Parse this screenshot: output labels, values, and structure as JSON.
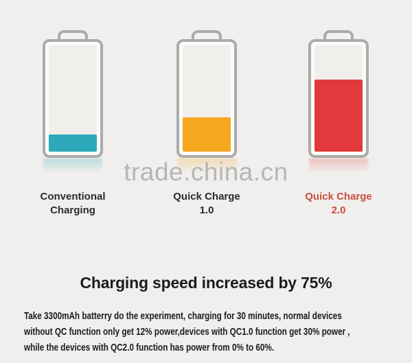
{
  "page": {
    "background_color": "#f0efed"
  },
  "watermark": {
    "text": "trade.china.cn",
    "color": "#b6b6b6"
  },
  "batteries": [
    {
      "name": "Conventional Charging",
      "label_line1": "Conventional",
      "label_line2": "Charging",
      "label_color": "#2a2a2a",
      "fill_color": "#2ba9b9",
      "reflection_color": "rgba(43,169,185,0.30)",
      "visual_fill_percent": 16,
      "power_percent_after_30_min": 12
    },
    {
      "name": "Quick Charge 1.0",
      "label_line1": "Quick Charge",
      "label_line2": "1.0",
      "label_color": "#2a2a2a",
      "fill_color": "#f6a81f",
      "reflection_color": "rgba(246,168,31,0.30)",
      "visual_fill_percent": 32,
      "power_percent_after_30_min": 30
    },
    {
      "name": "Quick Charge 2.0",
      "label_line1": "Quick Charge",
      "label_line2": "2.0",
      "label_color": "#c94f3f",
      "fill_color": "#e23a3c",
      "reflection_color": "rgba(226,58,60,0.28)",
      "visual_fill_percent": 68,
      "power_percent_after_30_min": 60
    }
  ],
  "headline": "Charging speed increased by 75%",
  "paragraph": {
    "line1": "Take 3300mAh batterry do the experiment, charging for 30 minutes, normal devices",
    "line2": "without QC function only get 12% power,devices with QC1.0 function get 30% power ,",
    "line3": "while the devices with QC2.0 function has power from 0% to 60%."
  },
  "chart_data": {
    "type": "bar",
    "categories": [
      "Conventional Charging",
      "Quick Charge 1.0",
      "Quick Charge 2.0"
    ],
    "values": [
      12,
      30,
      60
    ],
    "value_unit": "% battery power after 30 minutes of charging",
    "title": "Charging speed increased by 75%",
    "ylim": [
      0,
      100
    ],
    "bar_colors": [
      "#2ba9b9",
      "#f6a81f",
      "#e23a3c"
    ],
    "legend": "none",
    "grid": "off"
  }
}
